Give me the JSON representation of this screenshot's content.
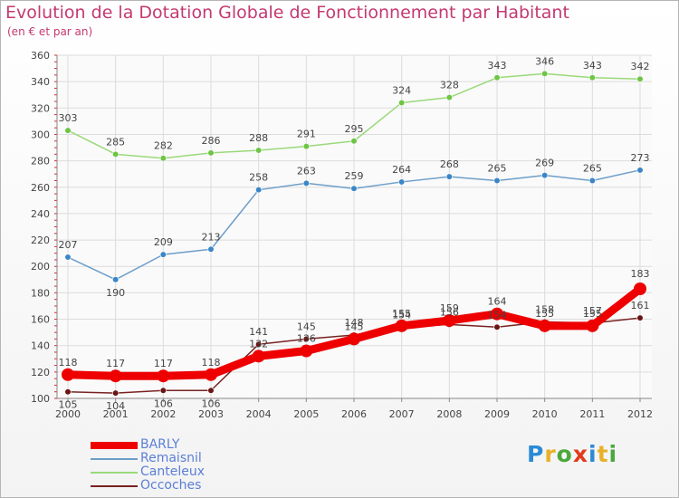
{
  "title": "Evolution de la Dotation Globale de Fonctionnement par Habitant",
  "subtitle": "(en € et par an)",
  "logo": {
    "letters": [
      "P",
      "r",
      "o",
      "x",
      "i",
      "t",
      "i"
    ],
    "colors": [
      "#2a8ad6",
      "#e8b12a",
      "#4aa83a",
      "#e23a1c",
      "#2a8ad6",
      "#e8b12a",
      "#4aa83a"
    ]
  },
  "chart_data": {
    "type": "line",
    "title": "Evolution de la Dotation Globale de Fonctionnement par Habitant",
    "subtitle": "(en € et par an)",
    "x": [
      "2000",
      "2001",
      "2002",
      "2003",
      "2004",
      "2005",
      "2006",
      "2007",
      "2008",
      "2009",
      "2010",
      "2011",
      "2012"
    ],
    "ylim": [
      100,
      360
    ],
    "yticks": [
      100,
      120,
      140,
      160,
      180,
      200,
      220,
      240,
      260,
      280,
      300,
      320,
      340,
      360
    ],
    "grid": true,
    "legend_position": "bottom-left",
    "series": [
      {
        "name": "BARLY",
        "color": "#ee0000",
        "marker": "#ee0000",
        "values": [
          118,
          117,
          117,
          118,
          132,
          136,
          145,
          155,
          159,
          164,
          155,
          155,
          183
        ],
        "labels": [
          "118",
          "117",
          "117",
          "118",
          "132",
          "136",
          "145",
          "155",
          "159",
          "164",
          "155",
          "155",
          "183"
        ]
      },
      {
        "name": "Remaisnil",
        "color": "#6d9ec9",
        "marker": "#3b86c8",
        "values": [
          207,
          190,
          209,
          213,
          258,
          263,
          259,
          264,
          268,
          265,
          269,
          265,
          273
        ],
        "labels": [
          "207",
          "190",
          "209",
          "213",
          "258",
          "263",
          "259",
          "264",
          "268",
          "265",
          "269",
          "265",
          "273"
        ]
      },
      {
        "name": "Canteleux",
        "color": "#9ad97a",
        "marker": "#6ec545",
        "values": [
          303,
          285,
          282,
          286,
          288,
          291,
          295,
          324,
          328,
          343,
          346,
          343,
          342
        ],
        "labels": [
          "303",
          "285",
          "282",
          "286",
          "288",
          "291",
          "295",
          "324",
          "328",
          "343",
          "346",
          "343",
          "342"
        ]
      },
      {
        "name": "Occoches",
        "color": "#7a2222",
        "marker": "#6a1515",
        "values": [
          105,
          104,
          106,
          106,
          141,
          145,
          148,
          154,
          156,
          154,
          158,
          157,
          161
        ],
        "labels": [
          "105",
          "104",
          "106",
          "106",
          "141",
          "145",
          "148",
          "154",
          "156",
          "154",
          "158",
          "157",
          "161"
        ]
      }
    ]
  }
}
